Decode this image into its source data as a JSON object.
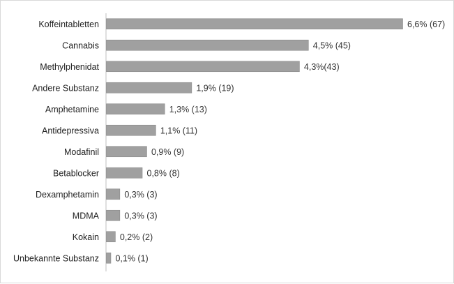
{
  "chart_data": {
    "type": "bar",
    "orientation": "horizontal",
    "categories": [
      "Koffeintabletten",
      "Cannabis",
      "Methylphenidat",
      "Andere Substanz",
      "Amphetamine",
      "Antidepressiva",
      "Modafinil",
      "Betablocker",
      "Dexamphetamin",
      "MDMA",
      "Kokain",
      "Unbekannte Substanz"
    ],
    "values": [
      6.6,
      4.5,
      4.3,
      1.9,
      1.3,
      1.1,
      0.9,
      0.8,
      0.3,
      0.3,
      0.2,
      0.1
    ],
    "data_labels": [
      "6,6% (67)",
      "4,5% (45)",
      "4,3%(43)",
      "1,9% (19)",
      "1,3% (13)",
      "1,1% (11)",
      "0,9% (9)",
      "0,8% (8)",
      "0,3% (3)",
      "0,3% (3)",
      "0,2% (2)",
      "0,1% (1)"
    ],
    "title": "",
    "xlabel": "",
    "ylabel": "",
    "xlim": [
      0,
      7
    ],
    "grid": false,
    "legend": "none",
    "bar_color": "#a0a0a0",
    "bar_edge_color": "#8a8a8a"
  }
}
